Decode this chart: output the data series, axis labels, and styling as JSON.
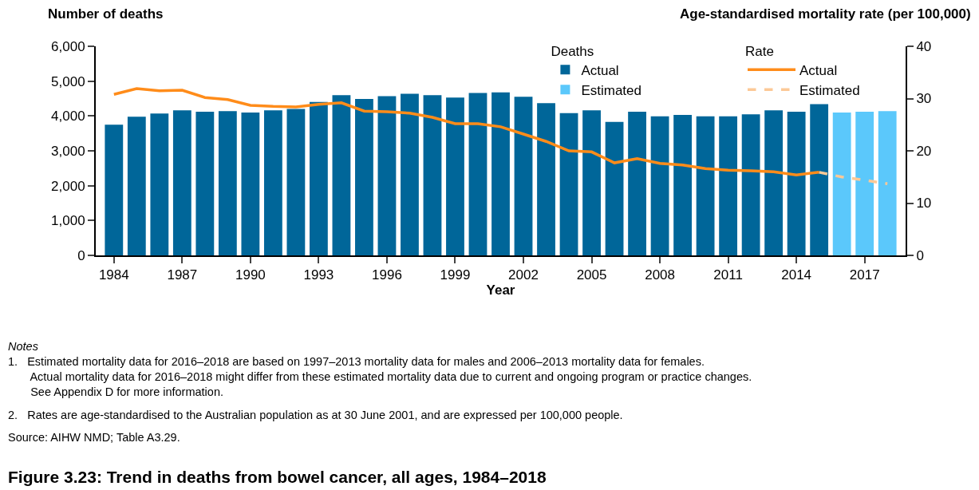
{
  "chart_data": {
    "type": "bar",
    "title": "Figure 3.23: Trend in deaths from bowel cancer, all ages, 1984–2018",
    "xlabel": "Year",
    "ylabel": "Number of deaths",
    "y2label": "Age-standardised mortality rate (per 100,000)",
    "legend_title": [
      "Deaths",
      "Rate"
    ],
    "series": [
      {
        "name": "Actual",
        "color": "#006699",
        "x": [
          1984,
          1985,
          1986,
          1987,
          1988,
          1989,
          1990,
          1991,
          1992,
          1993,
          1994,
          1995,
          1996,
          1997,
          1998,
          1999,
          2000,
          2001,
          2002,
          2003,
          2004,
          2005,
          2006,
          2007,
          2008,
          2009,
          2010,
          2011,
          2012,
          2013,
          2014,
          2015
        ],
        "values": [
          3750,
          3980,
          4070,
          4160,
          4120,
          4140,
          4100,
          4160,
          4200,
          4400,
          4600,
          4490,
          4570,
          4640,
          4600,
          4530,
          4660,
          4680,
          4550,
          4370,
          4080,
          4160,
          3830,
          4120,
          3990,
          4030,
          3990,
          3990,
          4050,
          4160,
          4120,
          4340
        ]
      },
      {
        "name": "Estimated",
        "color": "#5bc8fb",
        "x": [
          2016,
          2017,
          2018
        ],
        "values": [
          4100,
          4120,
          4140
        ]
      },
      {
        "name": "Actual",
        "type": "line",
        "axis": "y2",
        "color": "#ff8c1a",
        "line_style": "solid",
        "x": [
          1984,
          1985,
          1986,
          1987,
          1988,
          1989,
          1990,
          1991,
          1992,
          1993,
          1994,
          1995,
          1996,
          1997,
          1998,
          1999,
          2000,
          2001,
          2002,
          2003,
          2004,
          2005,
          2006,
          2007,
          2008,
          2009,
          2010,
          2011,
          2012,
          2013,
          2014,
          2015
        ],
        "values": [
          30.8,
          31.9,
          31.5,
          31.6,
          30.2,
          29.8,
          28.7,
          28.5,
          28.4,
          28.9,
          29.2,
          27.6,
          27.5,
          27.2,
          26.4,
          25.2,
          25.2,
          24.6,
          23.2,
          21.8,
          20.0,
          19.8,
          17.7,
          18.5,
          17.6,
          17.3,
          16.6,
          16.3,
          16.2,
          16.0,
          15.4,
          15.9
        ]
      },
      {
        "name": "Estimated",
        "type": "line",
        "axis": "y2",
        "color": "#fcc997",
        "line_style": "dashed",
        "x": [
          2015,
          2016,
          2017,
          2018
        ],
        "values": [
          15.9,
          15.0,
          14.4,
          13.7
        ]
      }
    ],
    "xlim": [
      1983.2,
      2018.8
    ],
    "xticks": [
      1984,
      1987,
      1990,
      1993,
      1996,
      1999,
      2002,
      2005,
      2008,
      2011,
      2014,
      2017
    ],
    "ylim": [
      0,
      6000
    ],
    "yticks": [
      {
        "value": 0,
        "label": "0"
      },
      {
        "value": 1000,
        "label": "1,000"
      },
      {
        "value": 2000,
        "label": "2,000"
      },
      {
        "value": 3000,
        "label": "3,000"
      },
      {
        "value": 4000,
        "label": "4,000"
      },
      {
        "value": 5000,
        "label": "5,000"
      },
      {
        "value": 6000,
        "label": "6,000"
      }
    ],
    "y2lim": [
      0,
      40
    ],
    "y2ticks": [
      0,
      10,
      20,
      30,
      40
    ],
    "legend": "top right",
    "annotations": [
      "Notes",
      "1.   Estimated mortality data for 2016–2018 are based on 1997–2013 mortality data for males and 2006–2013 mortality data for females.\n       Actual mortality data for 2016–2018 might differ from these estimated mortality data due to current and ongoing program or practice changes.\n       See Appendix D for more information.",
      "2.   Rates are age-standardised to the Australian population as at 30 June 2001, and are expressed per 100,000 people.",
      "Source: AIHW NMD; Table A3.29."
    ]
  }
}
